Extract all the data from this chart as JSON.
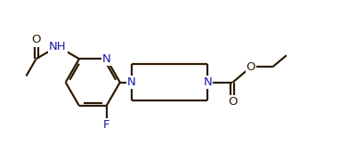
{
  "bg_color": "#ffffff",
  "line_color": "#2d1a00",
  "n_color": "#1a1aaa",
  "f_color": "#1a1aaa",
  "line_width": 1.6,
  "font_size": 9.5,
  "fig_width": 3.91,
  "fig_height": 1.89,
  "dpi": 100,
  "xlim": [
    0,
    10
  ],
  "ylim": [
    0,
    5
  ]
}
